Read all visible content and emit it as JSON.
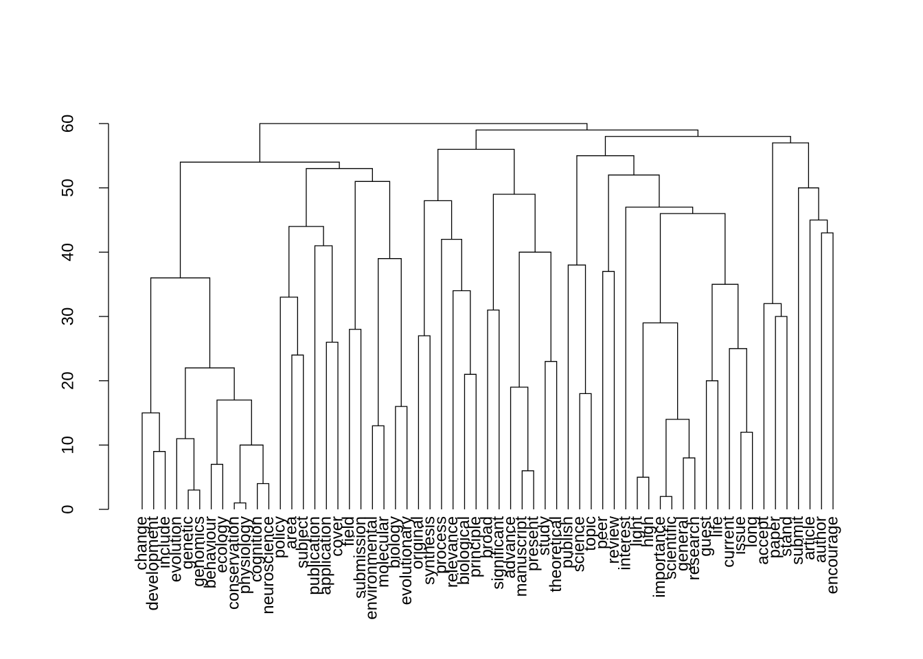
{
  "chart_data": {
    "type": "dendrogram",
    "leaves": [
      "change",
      "development",
      "include",
      "evolution",
      "genetic",
      "genomics",
      "behaviour",
      "ecology",
      "conservation",
      "physiology",
      "cognition",
      "neuroscience",
      "policy",
      "area",
      "subject",
      "publication",
      "application",
      "cover",
      "field",
      "submission",
      "environmental",
      "molecular",
      "biology",
      "evolutionary",
      "original",
      "synthesis",
      "process",
      "relevance",
      "biological",
      "principle",
      "broad",
      "significant",
      "advance",
      "manuscript",
      "present",
      "study",
      "theoretical",
      "publish",
      "science",
      "topic",
      "peer",
      "review",
      "interest",
      "light",
      "high",
      "importance",
      "scientific",
      "general",
      "research",
      "guest",
      "life",
      "current",
      "issue",
      "long",
      "accept",
      "paper",
      "stand",
      "submit",
      "article",
      "author",
      "encourage"
    ],
    "merges": [
      [
        -9,
        -10,
        1
      ],
      [
        -46,
        -47,
        2
      ],
      [
        -5,
        -6,
        3
      ],
      [
        -11,
        -12,
        4
      ],
      [
        -44,
        -45,
        5
      ],
      [
        -34,
        -35,
        6
      ],
      [
        -7,
        -8,
        7
      ],
      [
        -48,
        -49,
        8
      ],
      [
        -2,
        -3,
        9
      ],
      [
        1,
        4,
        10
      ],
      [
        -4,
        3,
        11
      ],
      [
        -53,
        -54,
        12
      ],
      [
        -21,
        -22,
        13
      ],
      [
        2,
        8,
        14
      ],
      [
        -1,
        9,
        15
      ],
      [
        -23,
        -24,
        16
      ],
      [
        7,
        10,
        17
      ],
      [
        -39,
        -40,
        18
      ],
      [
        -33,
        6,
        19
      ],
      [
        -50,
        -51,
        20
      ],
      [
        -29,
        -30,
        21
      ],
      [
        11,
        17,
        22
      ],
      [
        -36,
        -37,
        23
      ],
      [
        -14,
        -15,
        24
      ],
      [
        -52,
        12,
        25
      ],
      [
        -17,
        -18,
        26
      ],
      [
        -25,
        -26,
        27
      ],
      [
        -19,
        -20,
        28
      ],
      [
        5,
        14,
        29
      ],
      [
        -56,
        -57,
        30
      ],
      [
        -31,
        -32,
        31
      ],
      [
        -55,
        30,
        32
      ],
      [
        -13,
        24,
        33
      ],
      [
        -28,
        21,
        34
      ],
      [
        20,
        25,
        35
      ],
      [
        15,
        22,
        36
      ],
      [
        -41,
        -42,
        37
      ],
      [
        -38,
        18,
        38
      ],
      [
        13,
        16,
        39
      ],
      [
        19,
        23,
        40
      ],
      [
        -16,
        26,
        41
      ],
      [
        -27,
        34,
        42
      ],
      [
        -60,
        -61,
        43
      ],
      [
        33,
        41,
        44
      ],
      [
        -59,
        43,
        45
      ],
      [
        29,
        35,
        46
      ],
      [
        -43,
        46,
        47
      ],
      [
        27,
        42,
        48
      ],
      [
        31,
        40,
        49
      ],
      [
        -58,
        45,
        50
      ],
      [
        28,
        39,
        51
      ],
      [
        37,
        47,
        52
      ],
      [
        44,
        51,
        53
      ],
      [
        36,
        53,
        54
      ],
      [
        38,
        52,
        55
      ],
      [
        48,
        49,
        56
      ],
      [
        32,
        50,
        57
      ],
      [
        55,
        57,
        58
      ],
      [
        56,
        58,
        59
      ],
      [
        54,
        59,
        60
      ]
    ],
    "ylim": [
      0,
      60
    ],
    "yticks": [
      0,
      10,
      20,
      30,
      40,
      50,
      60
    ],
    "color": "#000000"
  }
}
